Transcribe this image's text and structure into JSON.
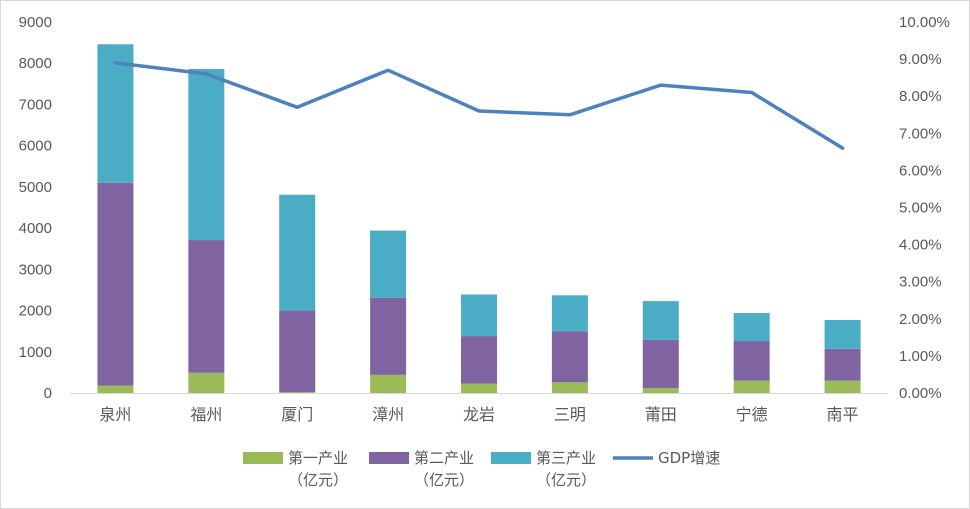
{
  "chart_data": {
    "type": "bar",
    "stacked": true,
    "categories": [
      "泉州",
      "福州",
      "厦门",
      "漳州",
      "龙岩",
      "三明",
      "莆田",
      "宁德",
      "南平"
    ],
    "series": [
      {
        "name": "第一产业（亿元）",
        "name_lines": [
          "第一产业",
          "（亿元）"
        ],
        "type": "bar",
        "axis": "left",
        "color": "#9bbb59",
        "values": [
          180,
          490,
          20,
          440,
          230,
          260,
          120,
          300,
          300
        ]
      },
      {
        "name": "第二产业（亿元）",
        "name_lines": [
          "第二产业",
          "（亿元）"
        ],
        "type": "bar",
        "axis": "left",
        "color": "#8064a2",
        "values": [
          4920,
          3220,
          1980,
          1870,
          1150,
          1240,
          1170,
          960,
          770
        ]
      },
      {
        "name": "第三产业（亿元）",
        "name_lines": [
          "第三产业",
          "（亿元）"
        ],
        "type": "bar",
        "axis": "left",
        "color": "#4bacc6",
        "values": [
          3360,
          4150,
          2810,
          1630,
          1010,
          870,
          940,
          680,
          700
        ]
      },
      {
        "name": "GDP增速",
        "name_lines": [
          "GDP增速"
        ],
        "type": "line",
        "axis": "right",
        "color": "#4f81bd",
        "values": [
          8.9,
          8.6,
          7.7,
          8.7,
          7.6,
          7.5,
          8.3,
          8.1,
          6.6
        ]
      }
    ],
    "y_left": {
      "ylim": [
        0,
        9000
      ],
      "ticks": [
        "0",
        "1000",
        "2000",
        "3000",
        "4000",
        "5000",
        "6000",
        "7000",
        "8000",
        "9000"
      ]
    },
    "y_right": {
      "ylim": [
        0,
        10
      ],
      "ticks": [
        "0.00%",
        "1.00%",
        "2.00%",
        "3.00%",
        "4.00%",
        "5.00%",
        "6.00%",
        "7.00%",
        "8.00%",
        "9.00%",
        "10.00%"
      ]
    },
    "title": "",
    "xlabel": "",
    "ylabel": "",
    "grid": false,
    "legend": "bottom"
  }
}
